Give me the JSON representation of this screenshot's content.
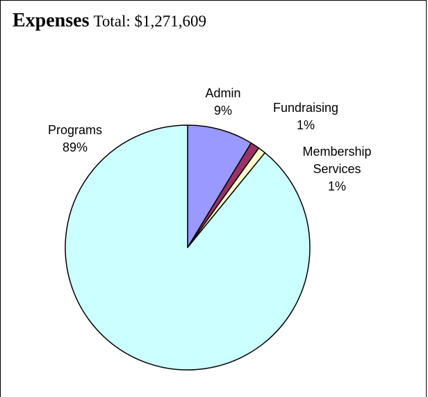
{
  "chart_data": {
    "type": "pie",
    "title": "Expenses",
    "subtitle": "Total: $1,271,609",
    "start_angle_deg": 0,
    "direction": "clockwise",
    "slices": [
      {
        "name": "Admin",
        "pct_label": "9%",
        "value": 8.7,
        "color": "#9999ff"
      },
      {
        "name": "Fundraising",
        "pct_label": "1%",
        "value": 1.2,
        "color": "#993366"
      },
      {
        "name": "Membership Services",
        "label_lines": [
          "Membership",
          "Services"
        ],
        "pct_label": "1%",
        "value": 1.0,
        "color": "#ffffcc"
      },
      {
        "name": "Programs",
        "pct_label": "89%",
        "value": 89.1,
        "color": "#ccffff"
      }
    ]
  }
}
